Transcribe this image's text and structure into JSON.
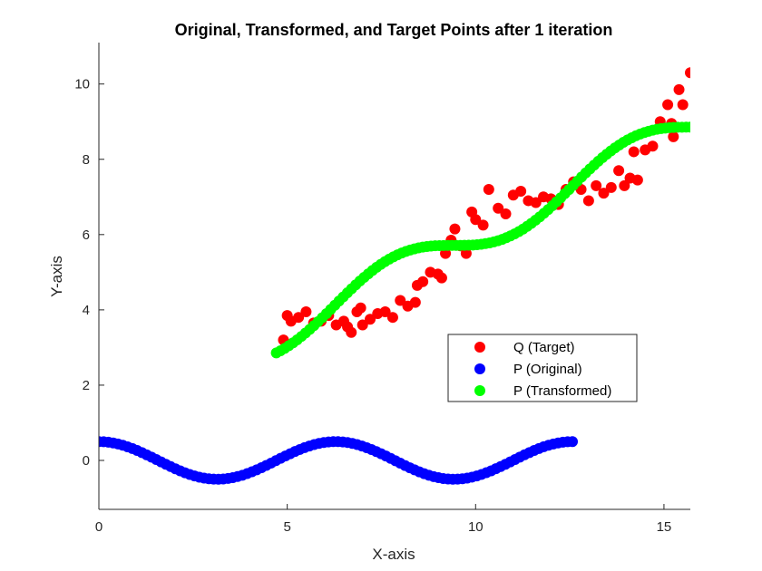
{
  "chart_data": {
    "type": "scatter",
    "title": "Original, Transformed, and Target Points after 1 iteration",
    "xlabel": "X-axis",
    "ylabel": "Y-axis",
    "xlim": [
      0,
      15.7
    ],
    "ylim": [
      -1.3,
      11.1
    ],
    "xticks": [
      0,
      5,
      10,
      15
    ],
    "yticks": [
      0,
      2,
      4,
      6,
      8,
      10
    ],
    "grid": false,
    "legend_position": "center-right",
    "series": [
      {
        "name": "Q (Target)",
        "color": "#ff0000",
        "points": [
          [
            4.9,
            3.2
          ],
          [
            5.0,
            3.85
          ],
          [
            5.1,
            3.7
          ],
          [
            5.3,
            3.8
          ],
          [
            5.5,
            3.95
          ],
          [
            5.7,
            3.65
          ],
          [
            5.9,
            3.7
          ],
          [
            6.1,
            3.85
          ],
          [
            6.3,
            3.6
          ],
          [
            6.5,
            3.7
          ],
          [
            6.6,
            3.55
          ],
          [
            6.7,
            3.4
          ],
          [
            6.85,
            3.95
          ],
          [
            6.95,
            4.05
          ],
          [
            7.0,
            3.6
          ],
          [
            7.2,
            3.75
          ],
          [
            7.4,
            3.9
          ],
          [
            7.6,
            3.95
          ],
          [
            7.8,
            3.8
          ],
          [
            8.0,
            4.25
          ],
          [
            8.2,
            4.1
          ],
          [
            8.4,
            4.2
          ],
          [
            8.45,
            4.65
          ],
          [
            8.6,
            4.75
          ],
          [
            8.8,
            5.0
          ],
          [
            9.0,
            4.95
          ],
          [
            9.1,
            4.85
          ],
          [
            9.2,
            5.5
          ],
          [
            9.35,
            5.85
          ],
          [
            9.45,
            6.15
          ],
          [
            9.6,
            5.7
          ],
          [
            9.75,
            5.5
          ],
          [
            9.9,
            6.6
          ],
          [
            10.0,
            6.4
          ],
          [
            10.2,
            6.25
          ],
          [
            10.35,
            7.2
          ],
          [
            10.6,
            6.7
          ],
          [
            10.8,
            6.55
          ],
          [
            11.0,
            7.05
          ],
          [
            11.2,
            7.15
          ],
          [
            11.4,
            6.9
          ],
          [
            11.6,
            6.85
          ],
          [
            11.8,
            7.0
          ],
          [
            12.0,
            6.95
          ],
          [
            12.2,
            6.8
          ],
          [
            12.4,
            7.2
          ],
          [
            12.6,
            7.4
          ],
          [
            12.8,
            7.2
          ],
          [
            13.0,
            6.9
          ],
          [
            13.2,
            7.3
          ],
          [
            13.4,
            7.1
          ],
          [
            13.6,
            7.25
          ],
          [
            13.8,
            7.7
          ],
          [
            13.95,
            7.3
          ],
          [
            14.1,
            7.5
          ],
          [
            14.3,
            7.45
          ],
          [
            14.2,
            8.2
          ],
          [
            14.5,
            8.25
          ],
          [
            14.7,
            8.35
          ],
          [
            14.9,
            9.0
          ],
          [
            15.1,
            9.45
          ],
          [
            15.2,
            8.95
          ],
          [
            15.25,
            8.6
          ],
          [
            15.4,
            9.85
          ],
          [
            15.5,
            9.45
          ],
          [
            15.7,
            10.3
          ]
        ]
      },
      {
        "name": "P (Original)",
        "color": "#0000ff",
        "function": "0.5*cos(x)",
        "x_range": [
          0,
          12.57
        ],
        "n_points": 100
      },
      {
        "name": "P (Transformed)",
        "color": "#00ff00",
        "function": "x/2 + 1 + 0.5*sin(x)",
        "x_range": [
          4.71,
          15.7
        ],
        "n_points": 100
      }
    ]
  }
}
